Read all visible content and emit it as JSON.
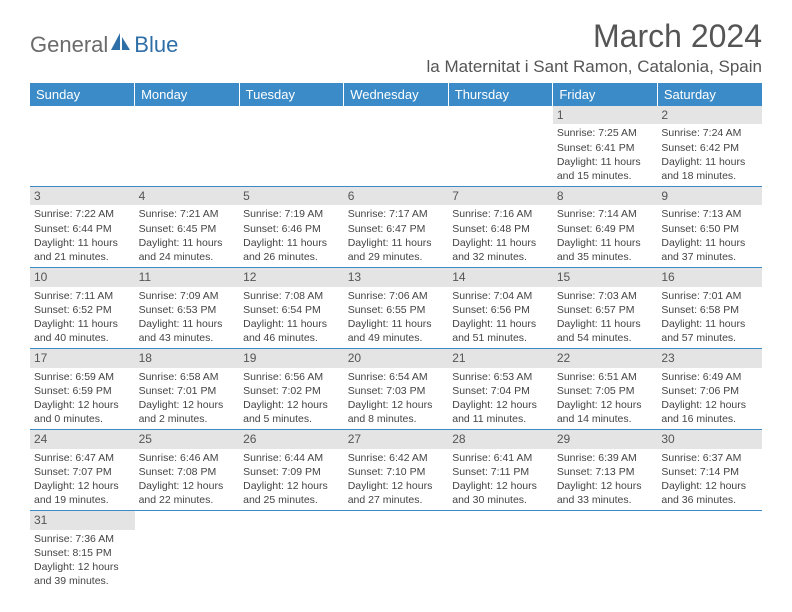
{
  "logo": {
    "part1": "Genera",
    "part2": "l",
    "part3": "Blue"
  },
  "title": "March 2024",
  "location": "la Maternitat i Sant Ramon, Catalonia, Spain",
  "colors": {
    "header_bg": "#3b8bc8",
    "header_text": "#ffffff",
    "daynum_bg": "#e4e4e4",
    "rule": "#3b8bc8",
    "text": "#444444"
  },
  "weekdays": [
    "Sunday",
    "Monday",
    "Tuesday",
    "Wednesday",
    "Thursday",
    "Friday",
    "Saturday"
  ],
  "weeks": [
    [
      null,
      null,
      null,
      null,
      null,
      {
        "day": "1",
        "sunrise": "Sunrise: 7:25 AM",
        "sunset": "Sunset: 6:41 PM",
        "daylight": "Daylight: 11 hours and 15 minutes."
      },
      {
        "day": "2",
        "sunrise": "Sunrise: 7:24 AM",
        "sunset": "Sunset: 6:42 PM",
        "daylight": "Daylight: 11 hours and 18 minutes."
      }
    ],
    [
      {
        "day": "3",
        "sunrise": "Sunrise: 7:22 AM",
        "sunset": "Sunset: 6:44 PM",
        "daylight": "Daylight: 11 hours and 21 minutes."
      },
      {
        "day": "4",
        "sunrise": "Sunrise: 7:21 AM",
        "sunset": "Sunset: 6:45 PM",
        "daylight": "Daylight: 11 hours and 24 minutes."
      },
      {
        "day": "5",
        "sunrise": "Sunrise: 7:19 AM",
        "sunset": "Sunset: 6:46 PM",
        "daylight": "Daylight: 11 hours and 26 minutes."
      },
      {
        "day": "6",
        "sunrise": "Sunrise: 7:17 AM",
        "sunset": "Sunset: 6:47 PM",
        "daylight": "Daylight: 11 hours and 29 minutes."
      },
      {
        "day": "7",
        "sunrise": "Sunrise: 7:16 AM",
        "sunset": "Sunset: 6:48 PM",
        "daylight": "Daylight: 11 hours and 32 minutes."
      },
      {
        "day": "8",
        "sunrise": "Sunrise: 7:14 AM",
        "sunset": "Sunset: 6:49 PM",
        "daylight": "Daylight: 11 hours and 35 minutes."
      },
      {
        "day": "9",
        "sunrise": "Sunrise: 7:13 AM",
        "sunset": "Sunset: 6:50 PM",
        "daylight": "Daylight: 11 hours and 37 minutes."
      }
    ],
    [
      {
        "day": "10",
        "sunrise": "Sunrise: 7:11 AM",
        "sunset": "Sunset: 6:52 PM",
        "daylight": "Daylight: 11 hours and 40 minutes."
      },
      {
        "day": "11",
        "sunrise": "Sunrise: 7:09 AM",
        "sunset": "Sunset: 6:53 PM",
        "daylight": "Daylight: 11 hours and 43 minutes."
      },
      {
        "day": "12",
        "sunrise": "Sunrise: 7:08 AM",
        "sunset": "Sunset: 6:54 PM",
        "daylight": "Daylight: 11 hours and 46 minutes."
      },
      {
        "day": "13",
        "sunrise": "Sunrise: 7:06 AM",
        "sunset": "Sunset: 6:55 PM",
        "daylight": "Daylight: 11 hours and 49 minutes."
      },
      {
        "day": "14",
        "sunrise": "Sunrise: 7:04 AM",
        "sunset": "Sunset: 6:56 PM",
        "daylight": "Daylight: 11 hours and 51 minutes."
      },
      {
        "day": "15",
        "sunrise": "Sunrise: 7:03 AM",
        "sunset": "Sunset: 6:57 PM",
        "daylight": "Daylight: 11 hours and 54 minutes."
      },
      {
        "day": "16",
        "sunrise": "Sunrise: 7:01 AM",
        "sunset": "Sunset: 6:58 PM",
        "daylight": "Daylight: 11 hours and 57 minutes."
      }
    ],
    [
      {
        "day": "17",
        "sunrise": "Sunrise: 6:59 AM",
        "sunset": "Sunset: 6:59 PM",
        "daylight": "Daylight: 12 hours and 0 minutes."
      },
      {
        "day": "18",
        "sunrise": "Sunrise: 6:58 AM",
        "sunset": "Sunset: 7:01 PM",
        "daylight": "Daylight: 12 hours and 2 minutes."
      },
      {
        "day": "19",
        "sunrise": "Sunrise: 6:56 AM",
        "sunset": "Sunset: 7:02 PM",
        "daylight": "Daylight: 12 hours and 5 minutes."
      },
      {
        "day": "20",
        "sunrise": "Sunrise: 6:54 AM",
        "sunset": "Sunset: 7:03 PM",
        "daylight": "Daylight: 12 hours and 8 minutes."
      },
      {
        "day": "21",
        "sunrise": "Sunrise: 6:53 AM",
        "sunset": "Sunset: 7:04 PM",
        "daylight": "Daylight: 12 hours and 11 minutes."
      },
      {
        "day": "22",
        "sunrise": "Sunrise: 6:51 AM",
        "sunset": "Sunset: 7:05 PM",
        "daylight": "Daylight: 12 hours and 14 minutes."
      },
      {
        "day": "23",
        "sunrise": "Sunrise: 6:49 AM",
        "sunset": "Sunset: 7:06 PM",
        "daylight": "Daylight: 12 hours and 16 minutes."
      }
    ],
    [
      {
        "day": "24",
        "sunrise": "Sunrise: 6:47 AM",
        "sunset": "Sunset: 7:07 PM",
        "daylight": "Daylight: 12 hours and 19 minutes."
      },
      {
        "day": "25",
        "sunrise": "Sunrise: 6:46 AM",
        "sunset": "Sunset: 7:08 PM",
        "daylight": "Daylight: 12 hours and 22 minutes."
      },
      {
        "day": "26",
        "sunrise": "Sunrise: 6:44 AM",
        "sunset": "Sunset: 7:09 PM",
        "daylight": "Daylight: 12 hours and 25 minutes."
      },
      {
        "day": "27",
        "sunrise": "Sunrise: 6:42 AM",
        "sunset": "Sunset: 7:10 PM",
        "daylight": "Daylight: 12 hours and 27 minutes."
      },
      {
        "day": "28",
        "sunrise": "Sunrise: 6:41 AM",
        "sunset": "Sunset: 7:11 PM",
        "daylight": "Daylight: 12 hours and 30 minutes."
      },
      {
        "day": "29",
        "sunrise": "Sunrise: 6:39 AM",
        "sunset": "Sunset: 7:13 PM",
        "daylight": "Daylight: 12 hours and 33 minutes."
      },
      {
        "day": "30",
        "sunrise": "Sunrise: 6:37 AM",
        "sunset": "Sunset: 7:14 PM",
        "daylight": "Daylight: 12 hours and 36 minutes."
      }
    ],
    [
      {
        "day": "31",
        "sunrise": "Sunrise: 7:36 AM",
        "sunset": "Sunset: 8:15 PM",
        "daylight": "Daylight: 12 hours and 39 minutes."
      },
      null,
      null,
      null,
      null,
      null,
      null
    ]
  ]
}
